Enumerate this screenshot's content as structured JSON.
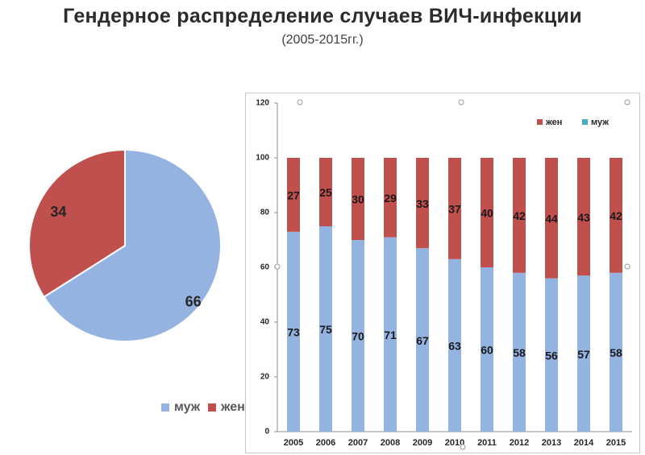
{
  "header": {
    "title": "Гендерное распределение случаев  ВИЧ-инфекции",
    "subtitle": "(2005-2015гг.)"
  },
  "colors": {
    "male": "#95b3e0",
    "female": "#c0504d",
    "legend_male_bar": "#4bacc6"
  },
  "chart_data": [
    {
      "type": "pie",
      "labels": [
        "муж",
        "жен"
      ],
      "values": [
        66,
        34
      ],
      "legend": [
        "муж",
        "жен"
      ],
      "legend_position": "bottom"
    },
    {
      "type": "bar",
      "stacked": true,
      "categories": [
        "2005",
        "2006",
        "2007",
        "2008",
        "2009",
        "2010",
        "2011",
        "2012",
        "2013",
        "2014",
        "2015"
      ],
      "series": [
        {
          "name": "муж",
          "values": [
            73,
            75,
            70,
            71,
            67,
            63,
            60,
            58,
            56,
            57,
            58
          ]
        },
        {
          "name": "жен",
          "values": [
            27,
            25,
            30,
            29,
            33,
            37,
            40,
            42,
            44,
            43,
            42
          ]
        }
      ],
      "ylim": [
        0,
        120
      ],
      "yticks": [
        0,
        20,
        40,
        60,
        80,
        100,
        120
      ],
      "legend": [
        "жен",
        "муж"
      ],
      "legend_position": "top-right",
      "grid": false
    }
  ]
}
